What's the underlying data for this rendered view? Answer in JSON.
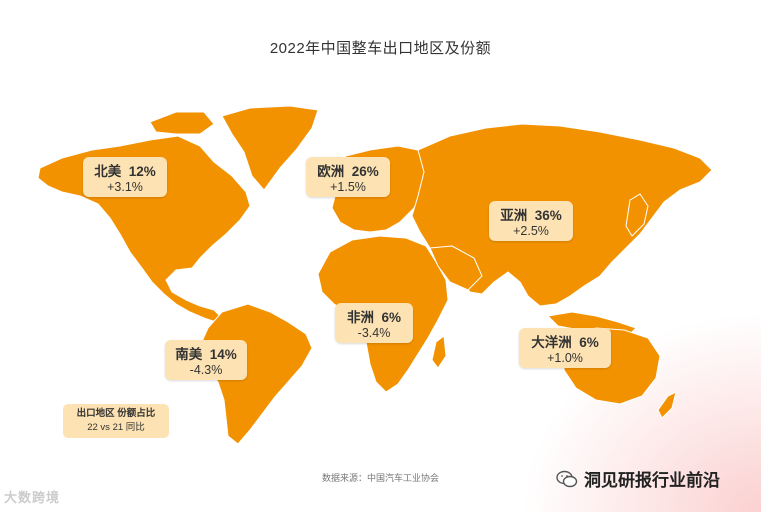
{
  "chart_data": {
    "type": "map",
    "title": "2022年中国整车出口地区及份额",
    "regions": [
      {
        "name": "北美",
        "share_pct": 12,
        "share_text": "12%",
        "change_text": "+3.1%",
        "change_pp": 3.1
      },
      {
        "name": "欧洲",
        "share_pct": 26,
        "share_text": "26%",
        "change_text": "+1.5%",
        "change_pp": 1.5
      },
      {
        "name": "亚洲",
        "share_pct": 36,
        "share_text": "36%",
        "change_text": "+2.5%",
        "change_pp": 2.5
      },
      {
        "name": "非洲",
        "share_pct": 6,
        "share_text": "6%",
        "change_text": "-3.4%",
        "change_pp": -3.4
      },
      {
        "name": "南美",
        "share_pct": 14,
        "share_text": "14%",
        "change_text": "-4.3%",
        "change_pp": -4.3
      },
      {
        "name": "大洋洲",
        "share_pct": 6,
        "share_text": "6%",
        "change_text": "+1.0%",
        "change_pp": 1.0
      }
    ],
    "legend": {
      "line1": "出口地区  份额占比",
      "line2": "22 vs 21 同比"
    },
    "source": "数据来源：中国汽车工业协会"
  },
  "colors": {
    "land": "#f39200",
    "label_bg": "#fde3b3"
  },
  "watermarks": {
    "left": "大数跨境",
    "right": "洞见研报行业前沿",
    "right_icon": "wechat-icon"
  }
}
